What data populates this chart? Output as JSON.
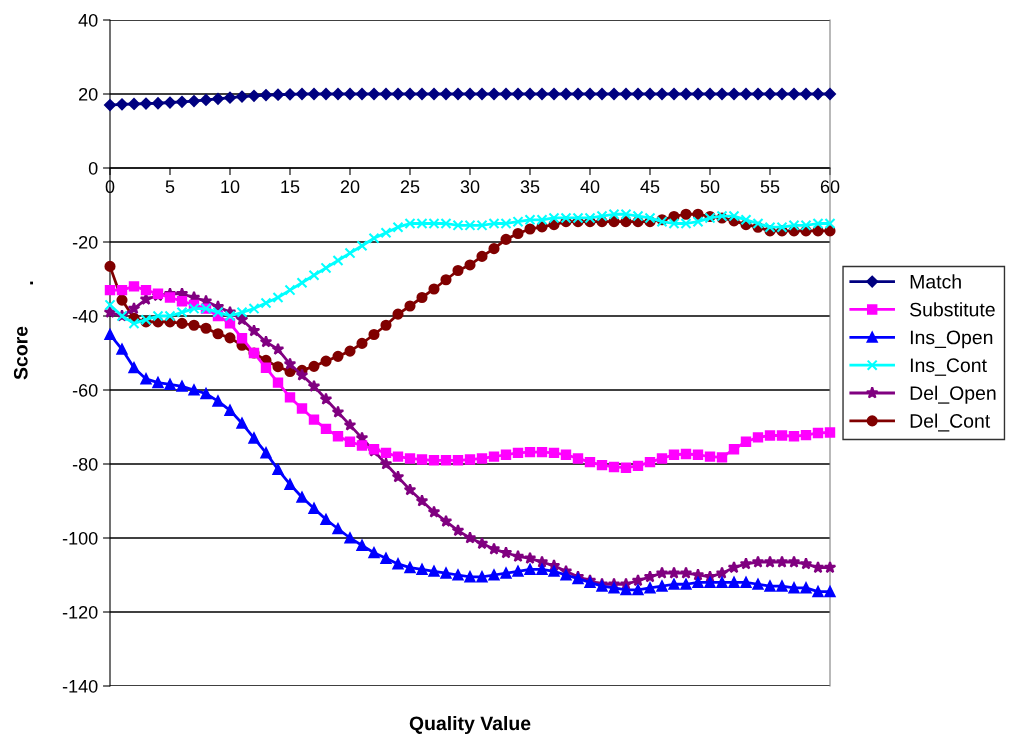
{
  "chart_data": {
    "type": "line",
    "xlabel": "Quality Value",
    "ylabel": "Score",
    "annotations": [
      "."
    ],
    "x": [
      0,
      1,
      2,
      3,
      4,
      5,
      6,
      7,
      8,
      9,
      10,
      11,
      12,
      13,
      14,
      15,
      16,
      17,
      18,
      19,
      20,
      21,
      22,
      23,
      24,
      25,
      26,
      27,
      28,
      29,
      30,
      31,
      32,
      33,
      34,
      35,
      36,
      37,
      38,
      39,
      40,
      41,
      42,
      43,
      44,
      45,
      46,
      47,
      48,
      49,
      50,
      51,
      52,
      53,
      54,
      55,
      56,
      57,
      58,
      59,
      60
    ],
    "xlim": [
      0,
      60
    ],
    "xticks": [
      0,
      5,
      10,
      15,
      20,
      25,
      30,
      35,
      40,
      45,
      50,
      55,
      60
    ],
    "ylim": [
      -140,
      40
    ],
    "yticks": [
      -140,
      -120,
      -100,
      -80,
      -60,
      -40,
      -20,
      0,
      20,
      40
    ],
    "grid": "y",
    "legend": "right",
    "line_style": "solid",
    "series": [
      {
        "name": "Match",
        "color": "#000080",
        "marker": "diamond",
        "values": [
          17,
          17.2,
          17.3,
          17.4,
          17.5,
          17.7,
          17.9,
          18.1,
          18.4,
          18.7,
          19,
          19.3,
          19.5,
          19.7,
          19.8,
          19.9,
          20,
          20,
          20,
          20,
          20,
          20,
          20,
          20,
          20,
          20,
          20,
          20,
          20,
          20,
          20,
          20,
          20,
          20,
          20,
          20,
          20,
          20,
          20,
          20,
          20,
          20,
          20,
          20,
          20,
          20,
          20,
          20,
          20,
          20,
          20,
          20,
          20,
          20,
          20,
          20,
          20,
          20,
          20,
          20,
          20
        ]
      },
      {
        "name": "Substitute",
        "color": "#ff00ff",
        "marker": "square",
        "values": [
          -33,
          -33,
          -32,
          -33,
          -34,
          -35,
          -36,
          -37,
          -38,
          -40,
          -42,
          -46,
          -50,
          -54,
          -58,
          -62,
          -65,
          -68,
          -70.5,
          -72.5,
          -74,
          -75,
          -76,
          -77,
          -78,
          -78.5,
          -78.8,
          -79,
          -79,
          -79,
          -78.8,
          -78.5,
          -78,
          -77.5,
          -77,
          -76.8,
          -76.8,
          -77,
          -77.5,
          -78.5,
          -79.5,
          -80.3,
          -80.8,
          -81,
          -80.5,
          -79.5,
          -78.5,
          -77.5,
          -77.3,
          -77.5,
          -78,
          -78.2,
          -76,
          -74,
          -72.8,
          -72.3,
          -72.3,
          -72.5,
          -72.2,
          -71.6,
          -71.5
        ]
      },
      {
        "name": "Ins_Open",
        "color": "#0000ff",
        "marker": "triangle",
        "values": [
          -45,
          -49,
          -54,
          -57,
          -58,
          -58.5,
          -59,
          -60,
          -61,
          -63,
          -65.5,
          -69,
          -73,
          -77,
          -81.5,
          -85.5,
          -89,
          -92,
          -95,
          -97.5,
          -100,
          -102,
          -104,
          -105.5,
          -107,
          -108,
          -108.5,
          -109,
          -109.5,
          -110,
          -110.5,
          -110.5,
          -110,
          -109.5,
          -109,
          -108.5,
          -108.5,
          -109,
          -110,
          -111,
          -112,
          -113,
          -113.5,
          -114,
          -114,
          -113.5,
          -113,
          -112.5,
          -112.5,
          -112,
          -112,
          -112,
          -112,
          -112,
          -112.5,
          -113,
          -113,
          -113.5,
          -113.5,
          -114.5,
          -114.5
        ]
      },
      {
        "name": "Ins_Cont",
        "color": "#00ffff",
        "marker": "cross",
        "values": [
          -37,
          -40,
          -42,
          -41,
          -40,
          -40,
          -39,
          -38,
          -38,
          -39,
          -40,
          -39,
          -38,
          -36.5,
          -35,
          -33,
          -31,
          -29,
          -27,
          -25,
          -23,
          -21,
          -19,
          -17.5,
          -16,
          -15,
          -15,
          -15,
          -15,
          -15.5,
          -15.5,
          -15.5,
          -15,
          -15,
          -14.5,
          -14,
          -14,
          -13.5,
          -13.5,
          -13.5,
          -13.5,
          -13,
          -12.5,
          -12.5,
          -13,
          -13.5,
          -14.5,
          -15,
          -15,
          -14.5,
          -13.5,
          -13,
          -13,
          -14,
          -15,
          -16,
          -16,
          -15.5,
          -15.5,
          -15,
          -15
        ]
      },
      {
        "name": "Del_Open",
        "color": "#800080",
        "marker": "star",
        "values": [
          -39,
          -40,
          -38,
          -35.5,
          -34.5,
          -34,
          -34,
          -35,
          -36,
          -37.5,
          -39,
          -41,
          -44,
          -47,
          -49,
          -53,
          -56,
          -59,
          -62.5,
          -66,
          -69.5,
          -73,
          -76.5,
          -80,
          -83.5,
          -87,
          -90,
          -93,
          -95.5,
          -98,
          -100,
          -101.5,
          -103,
          -104,
          -105,
          -105.5,
          -106.5,
          -107.5,
          -109,
          -110.5,
          -111.5,
          -112.5,
          -112.5,
          -112.5,
          -111.5,
          -110.5,
          -109.5,
          -109.5,
          -109.5,
          -110,
          -110.5,
          -109.5,
          -108,
          -107,
          -106.5,
          -106.5,
          -106.5,
          -106.5,
          -107,
          -108,
          -108
        ]
      },
      {
        "name": "Del_Cont",
        "color": "#800000",
        "marker": "circle",
        "values": [
          -26.6,
          -35.7,
          -40.6,
          -41.6,
          -41.6,
          -41.6,
          -42,
          -42.5,
          -43.3,
          -44.8,
          -45.9,
          -47.9,
          -50,
          -52,
          -53.7,
          -55,
          -54.7,
          -53.6,
          -52.2,
          -50.9,
          -49.5,
          -47.4,
          -45,
          -42.5,
          -39.5,
          -37.3,
          -35,
          -32.7,
          -30.2,
          -27.7,
          -26.2,
          -23.9,
          -21.8,
          -19.3,
          -17.7,
          -16.5,
          -15.9,
          -15.3,
          -14.5,
          -14.5,
          -14.5,
          -14.5,
          -14.5,
          -14.5,
          -14.5,
          -14.5,
          -14,
          -13.1,
          -12.5,
          -12.5,
          -13.1,
          -13.5,
          -14.3,
          -15.3,
          -16,
          -17,
          -17,
          -17,
          -17,
          -17,
          -17
        ]
      }
    ]
  }
}
